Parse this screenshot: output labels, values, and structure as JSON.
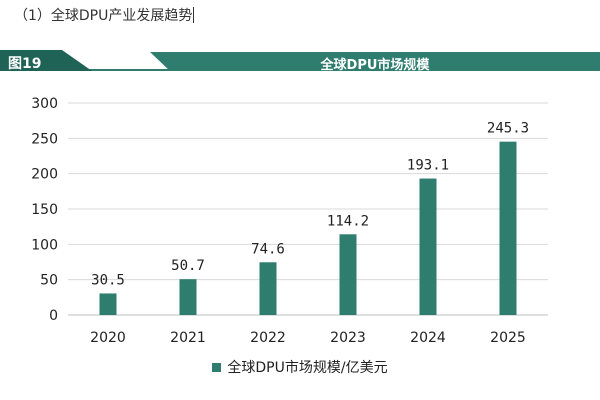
{
  "section_heading": "（1）全球DPU产业发展趋势",
  "figure": {
    "number": "图19",
    "title": "全球DPU市场规模",
    "banner_color": "#2e7d6e"
  },
  "chart_data": {
    "type": "bar",
    "categories": [
      "2020",
      "2021",
      "2022",
      "2023",
      "2024",
      "2025"
    ],
    "series": [
      {
        "name": "全球DPU市场规模/亿美元",
        "values": [
          30.5,
          50.7,
          74.6,
          114.2,
          193.1,
          245.3
        ],
        "labels": [
          "30.5",
          "50.7",
          "74.6",
          "114.2",
          "193.1",
          "245.3"
        ],
        "color": "#2e7d6e"
      }
    ],
    "yticks": [
      "0",
      "50",
      "100",
      "150",
      "200",
      "250",
      "300"
    ],
    "ylim": [
      0,
      300
    ],
    "grid": true,
    "legend": "bottom"
  }
}
